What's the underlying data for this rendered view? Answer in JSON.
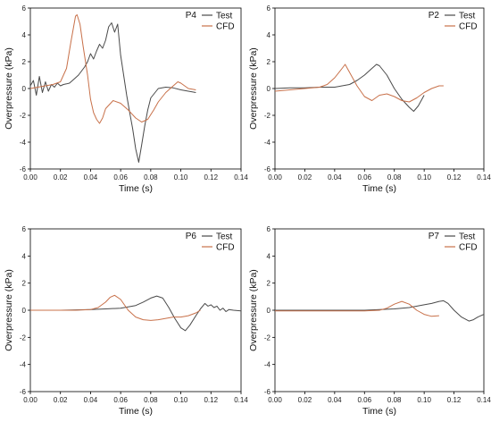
{
  "colors": {
    "Test": "#4a4a4a",
    "CFD": "#c8714a"
  },
  "chart_data": [
    {
      "type": "line",
      "panel_label": "P4",
      "xlabel": "Time (s)",
      "ylabel": "Overpressure (kPa)",
      "xlim": [
        0.0,
        0.14
      ],
      "ylim": [
        -6,
        6
      ],
      "xticks": [
        "0.00",
        "0.02",
        "0.04",
        "0.06",
        "0.08",
        "0.10",
        "0.12",
        "0.14"
      ],
      "yticks": [
        "-6",
        "-4",
        "-2",
        "0",
        "2",
        "4",
        "6"
      ],
      "legend": [
        "Test",
        "CFD"
      ],
      "legend_position": "top-right",
      "series": [
        {
          "name": "Test",
          "x": [
            0.0,
            0.002,
            0.004,
            0.006,
            0.008,
            0.01,
            0.012,
            0.014,
            0.016,
            0.018,
            0.02,
            0.022,
            0.024,
            0.026,
            0.028,
            0.03,
            0.032,
            0.034,
            0.036,
            0.038,
            0.04,
            0.042,
            0.044,
            0.046,
            0.048,
            0.05,
            0.052,
            0.054,
            0.056,
            0.058,
            0.06,
            0.062,
            0.064,
            0.066,
            0.068,
            0.07,
            0.072,
            0.074,
            0.076,
            0.078,
            0.08,
            0.085,
            0.09,
            0.095,
            0.1,
            0.105,
            0.11
          ],
          "y": [
            0.2,
            0.6,
            -0.5,
            0.9,
            -0.3,
            0.5,
            -0.2,
            0.3,
            0.1,
            0.4,
            0.2,
            0.3,
            0.35,
            0.4,
            0.6,
            0.8,
            1.0,
            1.3,
            1.6,
            2.0,
            2.6,
            2.2,
            2.8,
            3.3,
            3.0,
            3.6,
            4.6,
            4.9,
            4.2,
            4.8,
            2.5,
            1.0,
            -0.5,
            -1.8,
            -3.0,
            -4.5,
            -5.5,
            -4.2,
            -2.8,
            -1.6,
            -0.7,
            0.0,
            0.1,
            0.05,
            -0.1,
            -0.2,
            -0.3
          ]
        },
        {
          "name": "CFD",
          "x": [
            0.0,
            0.005,
            0.01,
            0.015,
            0.02,
            0.024,
            0.027,
            0.03,
            0.031,
            0.033,
            0.035,
            0.038,
            0.04,
            0.042,
            0.044,
            0.046,
            0.048,
            0.05,
            0.055,
            0.06,
            0.065,
            0.07,
            0.074,
            0.078,
            0.082,
            0.085,
            0.09,
            0.095,
            0.098,
            0.1,
            0.105,
            0.11
          ],
          "y": [
            0.0,
            0.1,
            0.2,
            0.3,
            0.5,
            1.5,
            3.5,
            5.4,
            5.5,
            4.8,
            3.2,
            1.0,
            -0.8,
            -1.8,
            -2.3,
            -2.6,
            -2.2,
            -1.5,
            -0.9,
            -1.1,
            -1.6,
            -2.2,
            -2.5,
            -2.3,
            -1.6,
            -1.0,
            -0.3,
            0.2,
            0.5,
            0.4,
            0.0,
            -0.1
          ]
        }
      ]
    },
    {
      "type": "line",
      "panel_label": "P2",
      "xlabel": "Time (s)",
      "ylabel": "Overpressure (kPa)",
      "xlim": [
        0.0,
        0.14
      ],
      "ylim": [
        -6,
        6
      ],
      "xticks": [
        "0.00",
        "0.02",
        "0.04",
        "0.06",
        "0.08",
        "0.10",
        "0.12",
        "0.14"
      ],
      "yticks": [
        "-6",
        "-4",
        "-2",
        "0",
        "2",
        "4",
        "6"
      ],
      "legend": [
        "Test",
        "CFD"
      ],
      "legend_position": "top-right",
      "series": [
        {
          "name": "Test",
          "x": [
            0.0,
            0.01,
            0.02,
            0.03,
            0.04,
            0.045,
            0.05,
            0.055,
            0.06,
            0.065,
            0.068,
            0.07,
            0.075,
            0.08,
            0.085,
            0.09,
            0.093,
            0.096,
            0.1
          ],
          "y": [
            0.0,
            0.05,
            0.05,
            0.1,
            0.1,
            0.2,
            0.3,
            0.6,
            1.0,
            1.5,
            1.8,
            1.7,
            1.0,
            0.0,
            -0.8,
            -1.4,
            -1.7,
            -1.3,
            -0.5
          ]
        },
        {
          "name": "CFD",
          "x": [
            0.0,
            0.01,
            0.02,
            0.03,
            0.035,
            0.04,
            0.045,
            0.047,
            0.05,
            0.055,
            0.06,
            0.065,
            0.07,
            0.075,
            0.08,
            0.085,
            0.09,
            0.095,
            0.1,
            0.105,
            0.11,
            0.113
          ],
          "y": [
            -0.2,
            -0.1,
            0.0,
            0.1,
            0.3,
            0.8,
            1.5,
            1.8,
            1.2,
            0.2,
            -0.6,
            -0.9,
            -0.5,
            -0.4,
            -0.6,
            -0.9,
            -1.0,
            -0.7,
            -0.3,
            0.0,
            0.2,
            0.2
          ]
        }
      ]
    },
    {
      "type": "line",
      "panel_label": "P6",
      "xlabel": "Time (s)",
      "ylabel": "Overpressure (kPa)",
      "xlim": [
        0.0,
        0.14
      ],
      "ylim": [
        -6,
        6
      ],
      "xticks": [
        "0.00",
        "0.02",
        "0.04",
        "0.06",
        "0.08",
        "0.10",
        "0.12",
        "0.14"
      ],
      "yticks": [
        "-6",
        "-4",
        "-2",
        "0",
        "2",
        "4",
        "6"
      ],
      "legend": [
        "Test",
        "CFD"
      ],
      "legend_position": "top-right",
      "series": [
        {
          "name": "Test",
          "x": [
            0.0,
            0.02,
            0.04,
            0.05,
            0.06,
            0.07,
            0.075,
            0.08,
            0.084,
            0.088,
            0.092,
            0.096,
            0.1,
            0.103,
            0.106,
            0.11,
            0.113,
            0.116,
            0.118,
            0.12,
            0.122,
            0.124,
            0.126,
            0.128,
            0.13,
            0.132,
            0.135,
            0.14
          ],
          "y": [
            0.0,
            0.0,
            0.05,
            0.1,
            0.15,
            0.35,
            0.6,
            0.9,
            1.05,
            0.9,
            0.2,
            -0.6,
            -1.3,
            -1.5,
            -1.1,
            -0.4,
            0.1,
            0.5,
            0.3,
            0.4,
            0.2,
            0.3,
            0.0,
            0.15,
            -0.1,
            0.05,
            0.0,
            -0.05
          ]
        },
        {
          "name": "CFD",
          "x": [
            0.0,
            0.01,
            0.02,
            0.03,
            0.04,
            0.045,
            0.05,
            0.053,
            0.056,
            0.06,
            0.065,
            0.07,
            0.075,
            0.08,
            0.085,
            0.09,
            0.095,
            0.1,
            0.105,
            0.11,
            0.113
          ],
          "y": [
            0.0,
            0.0,
            0.0,
            0.0,
            0.05,
            0.2,
            0.6,
            0.95,
            1.1,
            0.8,
            0.0,
            -0.5,
            -0.7,
            -0.75,
            -0.7,
            -0.6,
            -0.5,
            -0.5,
            -0.4,
            -0.2,
            0.0
          ]
        }
      ]
    },
    {
      "type": "line",
      "panel_label": "P7",
      "xlabel": "Time (s)",
      "ylabel": "Overpressure (kPa)",
      "xlim": [
        0.0,
        0.14
      ],
      "ylim": [
        -6,
        6
      ],
      "xticks": [
        "0.00",
        "0.02",
        "0.04",
        "0.06",
        "0.08",
        "0.10",
        "0.12",
        "0.14"
      ],
      "yticks": [
        "-6",
        "-4",
        "-2",
        "0",
        "2",
        "4",
        "6"
      ],
      "legend": [
        "Test",
        "CFD"
      ],
      "legend_position": "top-right",
      "series": [
        {
          "name": "Test",
          "x": [
            0.0,
            0.02,
            0.04,
            0.06,
            0.07,
            0.08,
            0.09,
            0.1,
            0.105,
            0.11,
            0.113,
            0.116,
            0.12,
            0.125,
            0.13,
            0.133,
            0.136,
            0.14
          ],
          "y": [
            0.0,
            0.0,
            0.0,
            0.0,
            0.05,
            0.1,
            0.2,
            0.4,
            0.5,
            0.65,
            0.7,
            0.5,
            0.0,
            -0.5,
            -0.8,
            -0.7,
            -0.5,
            -0.3
          ]
        },
        {
          "name": "CFD",
          "x": [
            0.0,
            0.02,
            0.04,
            0.06,
            0.07,
            0.075,
            0.08,
            0.085,
            0.09,
            0.095,
            0.1,
            0.105,
            0.11
          ],
          "y": [
            -0.05,
            -0.05,
            -0.05,
            -0.05,
            0.0,
            0.15,
            0.45,
            0.65,
            0.45,
            0.0,
            -0.3,
            -0.45,
            -0.4
          ]
        }
      ]
    }
  ]
}
